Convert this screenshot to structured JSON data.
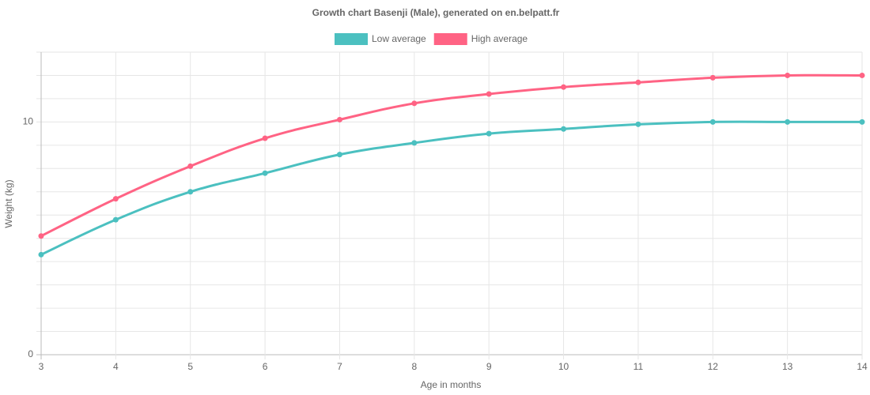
{
  "chart_data": {
    "type": "line",
    "title": "Growth chart Basenji (Male), generated on en.belpatt.fr",
    "xlabel": "Age in months",
    "ylabel": "Weight (kg)",
    "x": [
      3,
      4,
      5,
      6,
      7,
      8,
      9,
      10,
      11,
      12,
      13,
      14
    ],
    "series": [
      {
        "name": "Low average",
        "color": "#4bc0c0",
        "values": [
          4.3,
          5.8,
          7.0,
          7.8,
          8.6,
          9.1,
          9.5,
          9.7,
          9.9,
          10,
          10,
          10
        ]
      },
      {
        "name": "High average",
        "color": "#ff6384",
        "values": [
          5.1,
          6.7,
          8.1,
          9.3,
          10.1,
          10.8,
          11.2,
          11.5,
          11.7,
          11.9,
          12.0,
          12.0
        ]
      }
    ],
    "xlim": [
      3,
      14
    ],
    "xticks": [
      3,
      4,
      5,
      6,
      7,
      8,
      9,
      10,
      11,
      12,
      13,
      14
    ],
    "ylim": [
      0,
      13
    ],
    "yticks": [
      0,
      10
    ],
    "minor_yticks": [
      1,
      2,
      3,
      4,
      5,
      6,
      7,
      8,
      9,
      11,
      12,
      13
    ],
    "grid": true,
    "legend": "top"
  }
}
